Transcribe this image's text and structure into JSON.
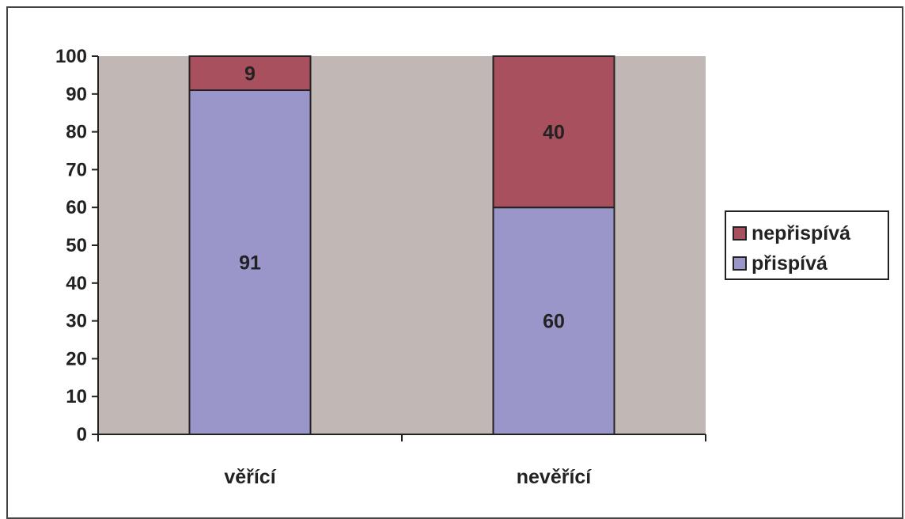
{
  "chart_data": {
    "type": "bar",
    "stacked": true,
    "categories": [
      "věřící",
      "nevěřící"
    ],
    "series": [
      {
        "name": "přispívá",
        "values": [
          91,
          60
        ],
        "color": "#9B96C9"
      },
      {
        "name": "nepřispívá",
        "values": [
          9,
          40
        ],
        "color": "#A8505E"
      }
    ],
    "ylim": [
      0,
      100
    ],
    "yticks": [
      0,
      10,
      20,
      30,
      40,
      50,
      60,
      70,
      80,
      90,
      100
    ],
    "plot_background": "#C1B8B5",
    "grid": false,
    "legend_position": "right",
    "legend_order": [
      "nepřispívá",
      "přispívá"
    ],
    "data_labels": true
  }
}
